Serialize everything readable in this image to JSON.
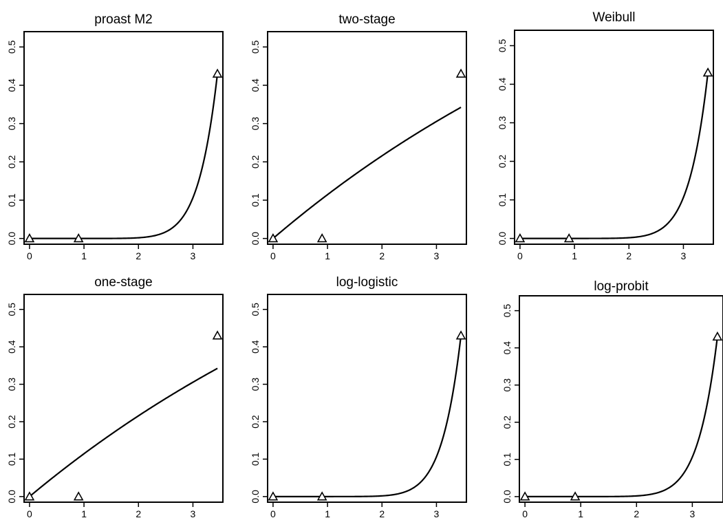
{
  "chart_data": [
    {
      "type": "line",
      "title": "proast M2",
      "xticks": [
        "0",
        "1",
        "2",
        "3"
      ],
      "yticks": [
        "0.0",
        "0.1",
        "0.2",
        "0.3",
        "0.4",
        "0.5"
      ],
      "xlim": [
        -0.1,
        3.55
      ],
      "ylim": [
        -0.015,
        0.54
      ],
      "points": [
        {
          "x": 0,
          "y": 0
        },
        {
          "x": 0.9,
          "y": 0
        },
        {
          "x": 3.45,
          "y": 0.43
        }
      ],
      "curve": {
        "kind": "power",
        "a": 0.43,
        "k": 10
      },
      "grid": false,
      "legend": "none"
    },
    {
      "type": "line",
      "title": "two-stage",
      "xticks": [
        "0",
        "1",
        "2",
        "3"
      ],
      "yticks": [
        "0.0",
        "0.1",
        "0.2",
        "0.3",
        "0.4",
        "0.5"
      ],
      "xlim": [
        -0.1,
        3.55
      ],
      "ylim": [
        -0.015,
        0.54
      ],
      "points": [
        {
          "x": 0,
          "y": 0
        },
        {
          "x": 0.9,
          "y": 0
        },
        {
          "x": 3.45,
          "y": 0.43
        }
      ],
      "curve": {
        "kind": "exp",
        "b": 0.1215
      },
      "grid": false,
      "legend": "none"
    },
    {
      "type": "line",
      "title": "Weibull",
      "xticks": [
        "0",
        "1",
        "2",
        "3"
      ],
      "yticks": [
        "0.0",
        "0.1",
        "0.2",
        "0.3",
        "0.4",
        "0.5"
      ],
      "xlim": [
        -0.1,
        3.55
      ],
      "ylim": [
        -0.015,
        0.54
      ],
      "points": [
        {
          "x": 0,
          "y": 0
        },
        {
          "x": 0.9,
          "y": 0
        },
        {
          "x": 3.45,
          "y": 0.43
        }
      ],
      "curve": {
        "kind": "power",
        "a": 0.43,
        "k": 10
      },
      "grid": false,
      "legend": "none"
    },
    {
      "type": "line",
      "title": "one-stage",
      "xticks": [
        "0",
        "1",
        "2",
        "3"
      ],
      "yticks": [
        "0.0",
        "0.1",
        "0.2",
        "0.3",
        "0.4",
        "0.5"
      ],
      "xlim": [
        -0.1,
        3.55
      ],
      "ylim": [
        -0.015,
        0.54
      ],
      "points": [
        {
          "x": 0,
          "y": 0
        },
        {
          "x": 0.9,
          "y": 0
        },
        {
          "x": 3.45,
          "y": 0.43
        }
      ],
      "curve": {
        "kind": "exp",
        "b": 0.1215
      },
      "grid": false,
      "legend": "none"
    },
    {
      "type": "line",
      "title": "log-logistic",
      "xticks": [
        "0",
        "1",
        "2",
        "3"
      ],
      "yticks": [
        "0.0",
        "0.1",
        "0.2",
        "0.3",
        "0.4",
        "0.5"
      ],
      "xlim": [
        -0.1,
        3.55
      ],
      "ylim": [
        -0.015,
        0.54
      ],
      "points": [
        {
          "x": 0,
          "y": 0
        },
        {
          "x": 0.9,
          "y": 0
        },
        {
          "x": 3.45,
          "y": 0.43
        }
      ],
      "curve": {
        "kind": "power",
        "a": 0.43,
        "k": 10
      },
      "grid": false,
      "legend": "none"
    },
    {
      "type": "line",
      "title": "log-probit",
      "xticks": [
        "0",
        "1",
        "2",
        "3"
      ],
      "yticks": [
        "0.0",
        "0.1",
        "0.2",
        "0.3",
        "0.4",
        "0.5"
      ],
      "xlim": [
        -0.1,
        3.55
      ],
      "ylim": [
        -0.015,
        0.54
      ],
      "points": [
        {
          "x": 0,
          "y": 0
        },
        {
          "x": 0.9,
          "y": 0
        },
        {
          "x": 3.45,
          "y": 0.43
        }
      ],
      "curve": {
        "kind": "power",
        "a": 0.43,
        "k": 10
      },
      "grid": false,
      "legend": "none"
    }
  ]
}
